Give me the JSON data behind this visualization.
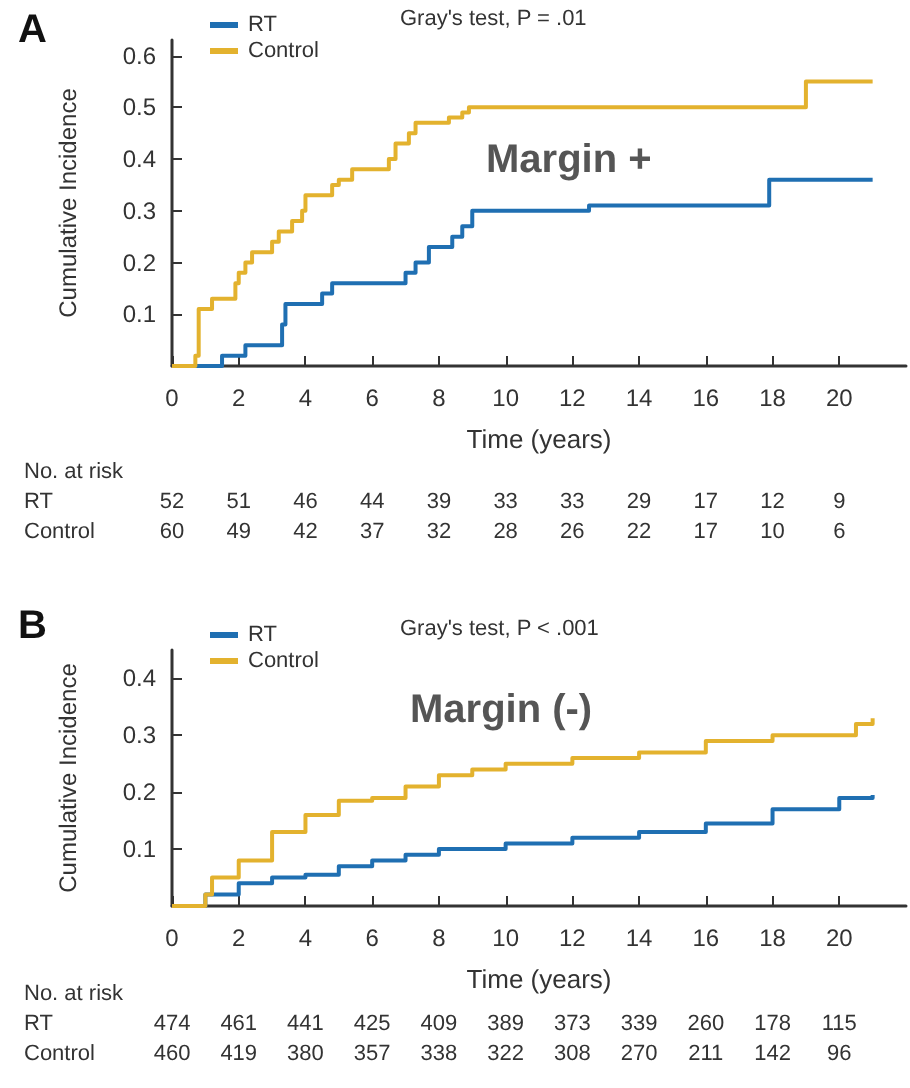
{
  "chart_data": [
    {
      "type": "step",
      "title": "A",
      "xlabel": "Time (years)",
      "ylabel": "Cumulative Incidence",
      "xlim": [
        0,
        22
      ],
      "xticks": [
        0,
        2,
        4,
        6,
        8,
        10,
        12,
        14,
        16,
        18,
        20
      ],
      "ylim": [
        0,
        0.63
      ],
      "yticks": [
        0.1,
        0.2,
        0.3,
        0.4,
        0.5,
        0.6
      ],
      "grid": false,
      "legend": "top left",
      "marker": "none",
      "line_style": "solid",
      "series": [
        {
          "name": "RT",
          "color": "#1f6fb2",
          "x": [
            0,
            1.5,
            2.2,
            3.3,
            3.4,
            4.5,
            4.8,
            7.0,
            7.3,
            7.7,
            8.4,
            8.7,
            9.0,
            12.5,
            17.9,
            21
          ],
          "values": [
            0,
            0.02,
            0.04,
            0.08,
            0.12,
            0.14,
            0.16,
            0.18,
            0.2,
            0.23,
            0.25,
            0.27,
            0.3,
            0.31,
            0.36,
            0.36
          ]
        },
        {
          "name": "Control",
          "color": "#e3b22e",
          "x": [
            0,
            0.7,
            0.8,
            1.2,
            1.9,
            2.0,
            2.2,
            2.4,
            3.0,
            3.2,
            3.6,
            3.9,
            4.0,
            4.8,
            5.0,
            5.4,
            6.5,
            6.7,
            7.1,
            7.3,
            8.3,
            8.7,
            8.9,
            19.0,
            21
          ],
          "values": [
            0,
            0.02,
            0.11,
            0.13,
            0.16,
            0.18,
            0.2,
            0.22,
            0.24,
            0.26,
            0.28,
            0.3,
            0.33,
            0.35,
            0.36,
            0.38,
            0.4,
            0.43,
            0.45,
            0.47,
            0.48,
            0.49,
            0.5,
            0.55,
            0.55
          ]
        }
      ],
      "annotations": [
        "Gray's test, P = .01",
        "Margin +",
        "No. at risk",
        "RT",
        "52",
        "51",
        "46",
        "44",
        "39",
        "33",
        "33",
        "29",
        "17",
        "12",
        "9",
        "Control",
        "60",
        "49",
        "42",
        "37",
        "32",
        "28",
        "26",
        "22",
        "17",
        "10",
        "6"
      ]
    },
    {
      "type": "step",
      "title": "B",
      "xlabel": "Time (years)",
      "ylabel": "Cumulative Incidence",
      "xlim": [
        0,
        22
      ],
      "xticks": [
        0,
        2,
        4,
        6,
        8,
        10,
        12,
        14,
        16,
        18,
        20
      ],
      "ylim": [
        0,
        0.45
      ],
      "yticks": [
        0.1,
        0.2,
        0.3,
        0.4
      ],
      "grid": false,
      "legend": "top left",
      "marker": "none",
      "line_style": "solid",
      "series": [
        {
          "name": "RT",
          "color": "#1f6fb2",
          "x": [
            0,
            1,
            2,
            3,
            4,
            5,
            6,
            7,
            8,
            10,
            12,
            14,
            16,
            18,
            20,
            21
          ],
          "values": [
            0,
            0.02,
            0.04,
            0.05,
            0.055,
            0.07,
            0.08,
            0.09,
            0.1,
            0.11,
            0.12,
            0.13,
            0.145,
            0.17,
            0.19,
            0.195
          ]
        },
        {
          "name": "Control",
          "color": "#e3b22e",
          "x": [
            0,
            1,
            1.2,
            2,
            3,
            4,
            5,
            6,
            7,
            8,
            9,
            10,
            12,
            13,
            14,
            16,
            18,
            20,
            20.5,
            21
          ],
          "values": [
            0,
            0.02,
            0.05,
            0.08,
            0.13,
            0.16,
            0.185,
            0.19,
            0.21,
            0.23,
            0.24,
            0.25,
            0.26,
            0.26,
            0.27,
            0.29,
            0.3,
            0.3,
            0.32,
            0.33
          ]
        }
      ],
      "annotations": [
        "Gray's test, P < .001",
        "Margin (-)",
        "No. at risk",
        "RT",
        "474",
        "461",
        "441",
        "425",
        "409",
        "389",
        "373",
        "339",
        "260",
        "178",
        "115",
        "Control",
        "460",
        "419",
        "380",
        "357",
        "338",
        "322",
        "308",
        "270",
        "211",
        "142",
        "96"
      ]
    }
  ]
}
